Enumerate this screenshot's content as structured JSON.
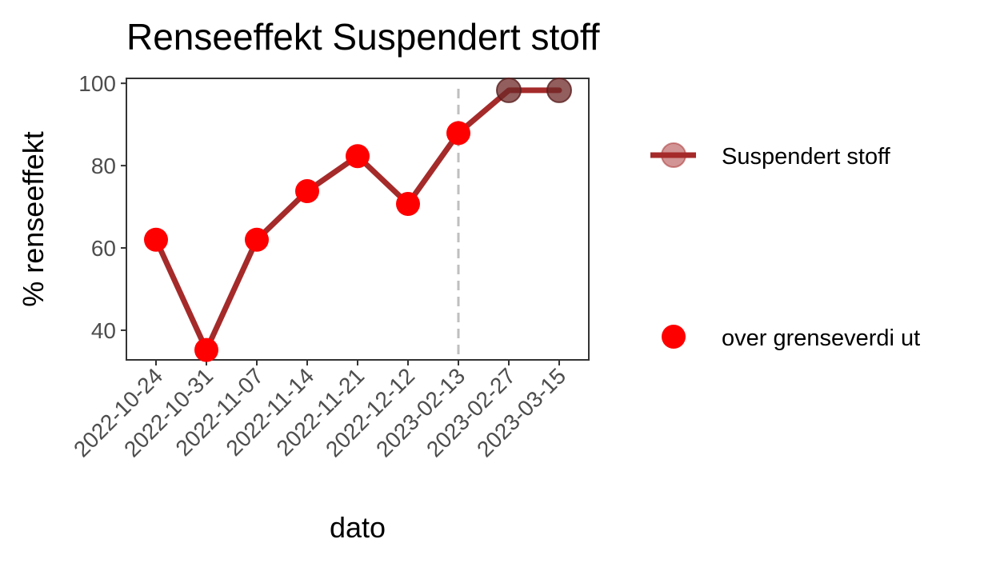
{
  "chart_data": {
    "type": "line",
    "title": "Renseeffekt Suspendert stoff",
    "xlabel": "dato",
    "ylabel": "% renseeffekt",
    "categories": [
      "2022-10-24",
      "2022-10-31",
      "2022-11-07",
      "2022-11-14",
      "2022-11-21",
      "2022-12-12",
      "2023-02-13",
      "2023-02-27",
      "2023-03-15"
    ],
    "series": [
      {
        "name": "Suspendert stoff",
        "values": [
          62,
          35.2,
          62,
          73.8,
          82.3,
          70.7,
          87.9,
          98.3,
          98.3
        ],
        "color": "#a52a2a"
      }
    ],
    "highlight": {
      "name": "over grenseverdi ut",
      "categories": [
        "2022-10-24",
        "2022-10-31",
        "2022-11-07",
        "2022-11-14",
        "2022-11-21",
        "2022-12-12",
        "2023-02-13"
      ],
      "color": "#ff0000"
    },
    "vline": "2023-02-13",
    "y_ticks": [
      40,
      60,
      80,
      100
    ],
    "ylim": [
      32.8,
      101.2
    ],
    "grid": false,
    "legend_position": "right"
  }
}
